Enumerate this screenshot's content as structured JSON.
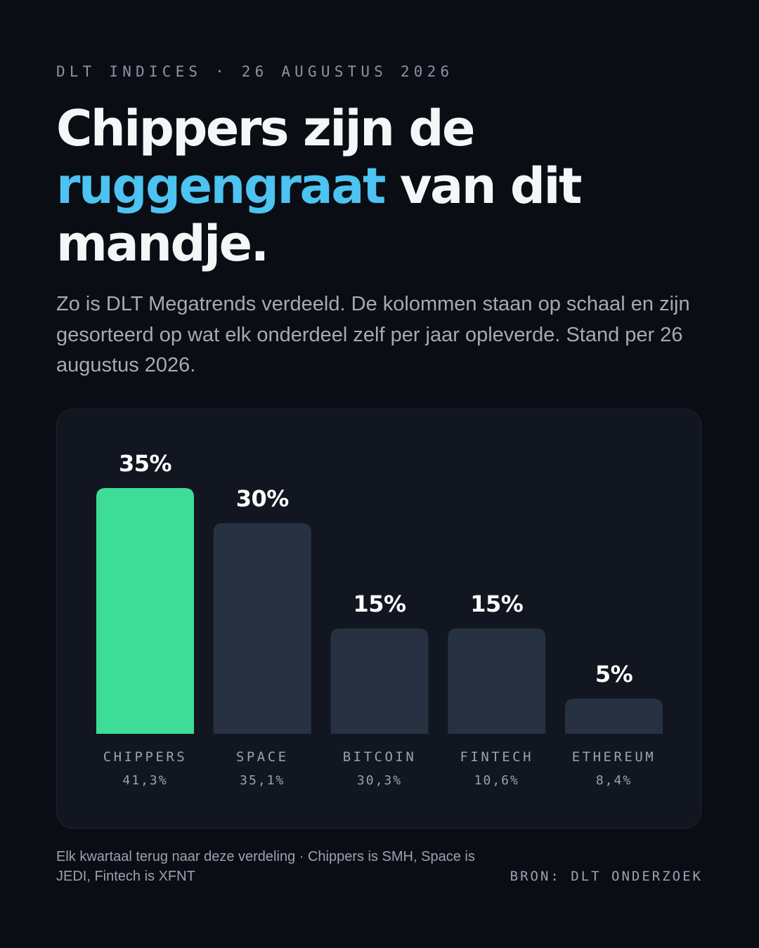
{
  "header": {
    "eyebrow": "DLT INDICES · 26 AUGUSTUS 2026",
    "headline_line1": "Chippers zijn de",
    "headline_accent": "ruggengraat",
    "headline_line2_rest": " van dit",
    "headline_line3": "mandje.",
    "subtitle": "Zo is DLT Megatrends verdeeld. De kolommen staan op schaal en zijn gesorteerd op wat elk onderdeel zelf per jaar opleverde. Stand per 26 augustus 2026."
  },
  "colors": {
    "accent_text": "#4cc3f0",
    "highlight_bar": "#3ddc97",
    "default_bar": "#283142",
    "background": "#0a0d14",
    "card": "#111620"
  },
  "chart_data": {
    "type": "bar",
    "categories": [
      "CHIPPERS",
      "SPACE",
      "BITCOIN",
      "FINTECH",
      "ETHEREUM"
    ],
    "values": [
      35,
      30,
      15,
      15,
      5
    ],
    "value_labels": [
      "35%",
      "30%",
      "15%",
      "15%",
      "5%"
    ],
    "sub_labels": [
      "41,3%",
      "35,1%",
      "30,3%",
      "10,6%",
      "8,4%"
    ],
    "highlight_index": 0,
    "ylim": [
      0,
      35
    ],
    "grid": false,
    "legend": "none",
    "title": "",
    "xlabel": "",
    "ylabel": ""
  },
  "footer": {
    "note": "Elk kwartaal terug naar deze verdeling · Chippers is SMH, Space is JEDI, Fintech is XFNT",
    "source": "BRON: DLT ONDERZOEK"
  }
}
